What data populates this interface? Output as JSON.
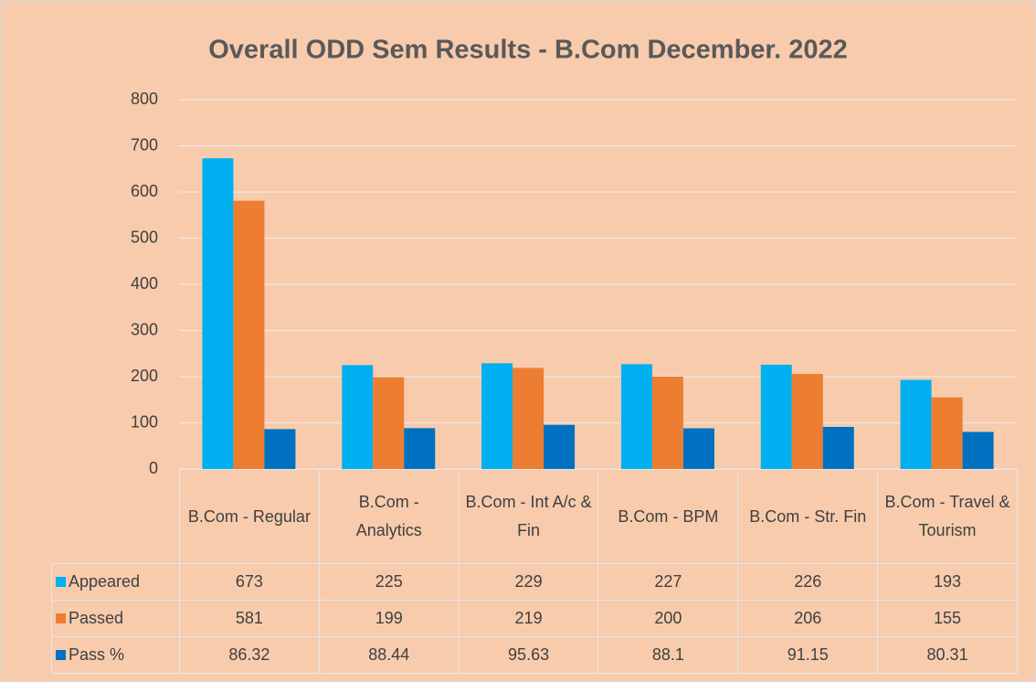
{
  "chart_data": {
    "type": "bar",
    "title": "Overall  ODD Sem Results - B.Com December. 2022",
    "categories": [
      "B.Com - Regular",
      "B.Com - Analytics",
      "B.Com - Int A/c & Fin",
      "B.Com - BPM",
      "B.Com - Str. Fin",
      "B.Com - Travel & Tourism"
    ],
    "series": [
      {
        "name": "Appeared",
        "color": "#00b0f0",
        "values": [
          673,
          225,
          229,
          227,
          226,
          193
        ]
      },
      {
        "name": "Passed",
        "color": "#ed7d31",
        "values": [
          581,
          199,
          219,
          200,
          206,
          155
        ]
      },
      {
        "name": "Pass %",
        "color": "#0070c0",
        "values": [
          86.32,
          88.44,
          95.63,
          88.1,
          91.15,
          80.31
        ]
      }
    ],
    "ylim": [
      0,
      800
    ],
    "yticks": [
      0,
      100,
      200,
      300,
      400,
      500,
      600,
      700,
      800
    ],
    "grid": true
  }
}
